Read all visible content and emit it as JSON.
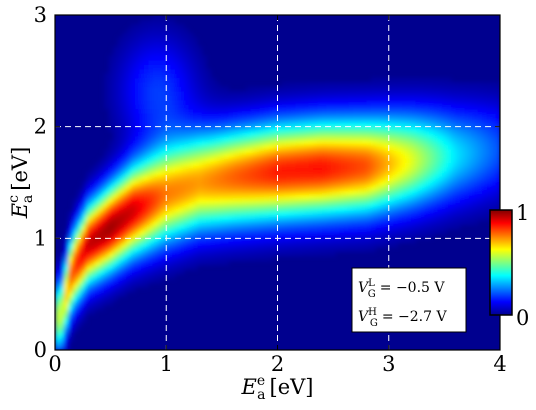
{
  "chart_data": {
    "type": "heatmap",
    "title": "",
    "xlabel": {
      "main": "E",
      "sub": "a",
      "sup": "e",
      "unit": "[eV]"
    },
    "ylabel": {
      "main": "E",
      "sub": "a",
      "sup": "c",
      "unit": "[eV]"
    },
    "xlim": [
      0,
      4
    ],
    "ylim": [
      0,
      3
    ],
    "x_ticks": [
      "0",
      "1",
      "2",
      "3",
      "4"
    ],
    "y_ticks": [
      "0",
      "1",
      "2",
      "3"
    ],
    "grid": true,
    "colorbar": {
      "min_label": "0",
      "max_label": "1",
      "range": [
        0,
        1
      ],
      "colormap": "jet",
      "placement": "right-inside"
    },
    "background_color": "#00008f",
    "density_ridges": [
      {
        "x": [
          0.05,
          0.15,
          0.3,
          0.5,
          0.7,
          1.0,
          1.3,
          1.6,
          2.0,
          2.4,
          2.8,
          3.2,
          3.6,
          4.0
        ],
        "y": [
          0.3,
          0.7,
          0.95,
          1.1,
          1.25,
          1.4,
          1.5,
          1.55,
          1.6,
          1.63,
          1.65,
          1.7,
          1.75,
          1.8
        ],
        "peak": [
          0.55,
          0.8,
          0.93,
          0.97,
          0.92,
          0.75,
          0.72,
          0.78,
          0.85,
          0.86,
          0.8,
          0.6,
          0.35,
          0.2
        ]
      }
    ],
    "annotation": [
      {
        "var": "V",
        "sub": "G",
        "sup": "L",
        "value": "= −0.5 V"
      },
      {
        "var": "V",
        "sub": "G",
        "sup": "H",
        "value": "= −2.7 V"
      }
    ]
  }
}
